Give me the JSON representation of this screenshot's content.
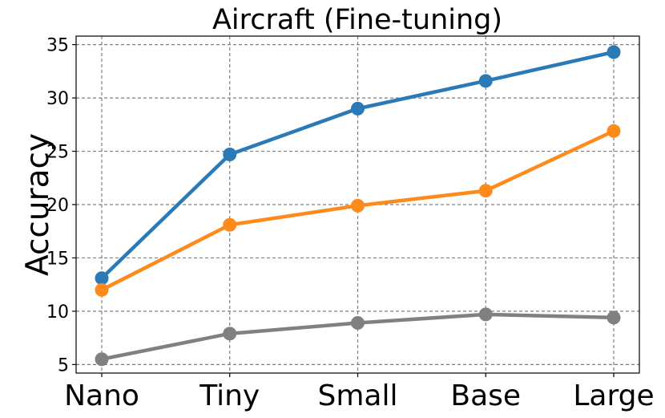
{
  "chart_data": {
    "type": "line",
    "title": "Aircraft (Fine-tuning)",
    "xlabel": "",
    "ylabel": "Accuracy",
    "categories": [
      "Nano",
      "Tiny",
      "Small",
      "Base",
      "Large"
    ],
    "yticks": [
      5,
      10,
      15,
      20,
      25,
      30,
      35
    ],
    "ylim": [
      4.2,
      35.8
    ],
    "grid": true,
    "series": [
      {
        "color": "#2a7ab8",
        "values": [
          13.1,
          24.7,
          29.0,
          31.6,
          34.3
        ]
      },
      {
        "color": "#ff8a1c",
        "values": [
          12.0,
          18.1,
          19.9,
          21.3,
          26.9
        ]
      },
      {
        "color": "#808080",
        "values": [
          5.5,
          7.9,
          8.9,
          9.7,
          9.4
        ]
      }
    ]
  }
}
